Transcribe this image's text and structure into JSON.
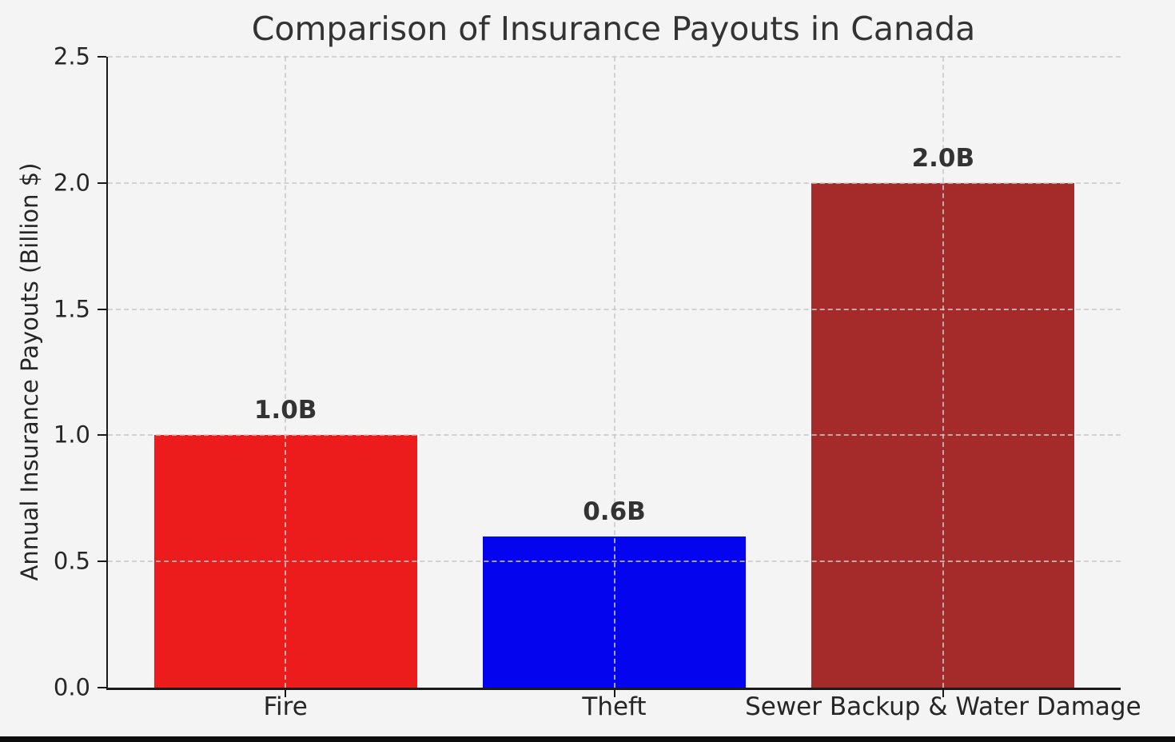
{
  "chart_data": {
    "type": "bar",
    "title": "Comparison of Insurance Payouts in Canada",
    "ylabel": "Annual Insurance Payouts (Billion $)",
    "xlabel": "",
    "categories": [
      "Fire",
      "Theft",
      "Sewer Backup & Water Damage"
    ],
    "values": [
      1.0,
      0.6,
      2.0
    ],
    "bar_labels": [
      "1.0B",
      "0.6B",
      "2.0B"
    ],
    "bar_colors": [
      "#ED1C1C",
      "#0404EE",
      "#A52A2A"
    ],
    "ylim": [
      0.0,
      2.5
    ],
    "yticks": [
      "0.0",
      "0.5",
      "1.0",
      "1.5",
      "2.0",
      "2.5"
    ],
    "grid": "dashed horizontal and vertical, drawn over bars",
    "legend": "none",
    "colors": {
      "background": "#F4F4F5",
      "axis": "#1a1a1a",
      "gridline": "#C9C9C9",
      "text": "#262626",
      "title_text": "#333333",
      "bottom_strip": "#0d0d0d"
    }
  }
}
